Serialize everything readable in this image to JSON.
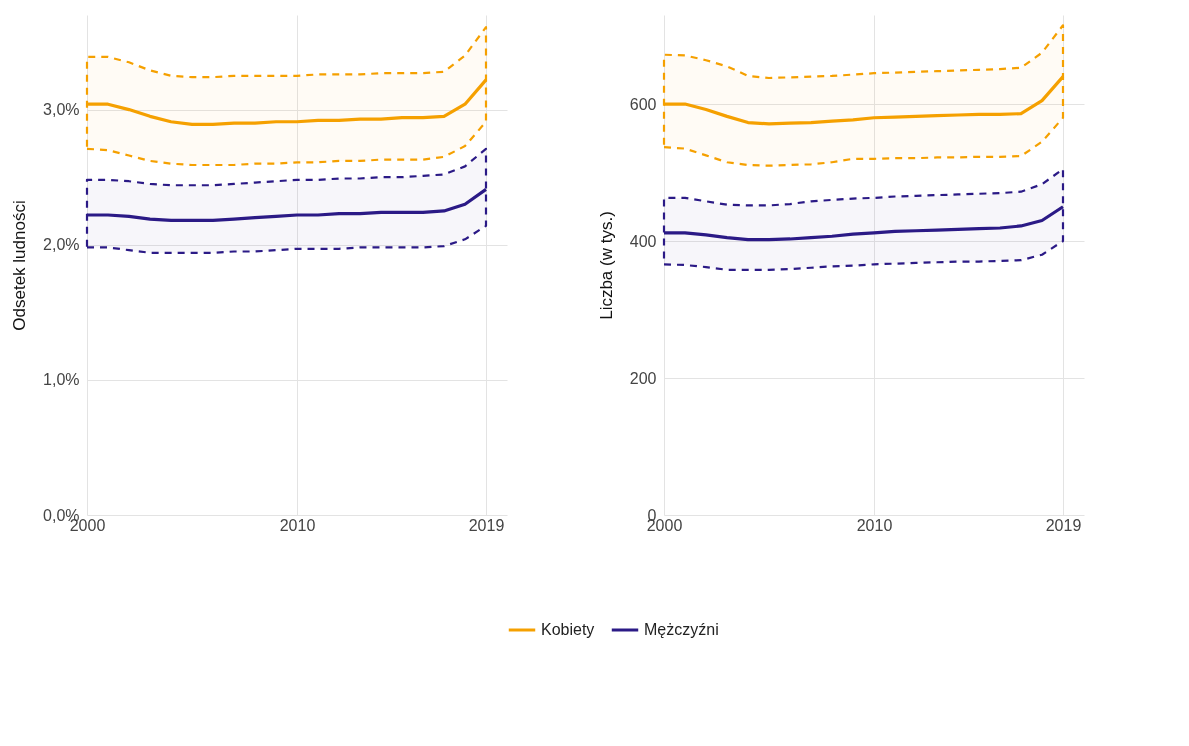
{
  "chart_data": [
    {
      "type": "line",
      "ylabel": "Odsetek ludności",
      "x": [
        2000,
        2001,
        2002,
        2003,
        2004,
        2005,
        2006,
        2007,
        2008,
        2009,
        2010,
        2011,
        2012,
        2013,
        2014,
        2015,
        2016,
        2017,
        2018,
        2019
      ],
      "xlim": [
        2000,
        2020
      ],
      "xticks": [
        2000,
        2010,
        2019
      ],
      "ylim": [
        0,
        3.7
      ],
      "yticks": [
        {
          "value": 0,
          "label": "0,0%"
        },
        {
          "value": 1,
          "label": "1,0%"
        },
        {
          "value": 2,
          "label": "2,0%"
        },
        {
          "value": 3,
          "label": "3,0%"
        }
      ],
      "grid": true,
      "legend": "bottom",
      "series": [
        {
          "name": "Kobiety",
          "color": "#f5a000",
          "values": [
            3.04,
            3.04,
            3.0,
            2.95,
            2.91,
            2.89,
            2.89,
            2.9,
            2.9,
            2.91,
            2.91,
            2.92,
            2.92,
            2.93,
            2.93,
            2.94,
            2.94,
            2.95,
            3.04,
            3.22
          ],
          "upper": [
            3.39,
            3.39,
            3.35,
            3.29,
            3.25,
            3.24,
            3.24,
            3.25,
            3.25,
            3.25,
            3.25,
            3.26,
            3.26,
            3.26,
            3.27,
            3.27,
            3.27,
            3.28,
            3.4,
            3.61
          ],
          "lower": [
            2.71,
            2.7,
            2.66,
            2.62,
            2.6,
            2.59,
            2.59,
            2.59,
            2.6,
            2.6,
            2.61,
            2.61,
            2.62,
            2.62,
            2.63,
            2.63,
            2.63,
            2.65,
            2.73,
            2.91
          ]
        },
        {
          "name": "Mężczyźni",
          "color": "#2b1a86",
          "values": [
            2.22,
            2.22,
            2.21,
            2.19,
            2.18,
            2.18,
            2.18,
            2.19,
            2.2,
            2.21,
            2.22,
            2.22,
            2.23,
            2.23,
            2.24,
            2.24,
            2.24,
            2.25,
            2.3,
            2.41
          ],
          "upper": [
            2.48,
            2.48,
            2.47,
            2.45,
            2.44,
            2.44,
            2.44,
            2.45,
            2.46,
            2.47,
            2.48,
            2.48,
            2.49,
            2.49,
            2.5,
            2.5,
            2.51,
            2.52,
            2.58,
            2.71
          ],
          "lower": [
            1.98,
            1.98,
            1.96,
            1.94,
            1.94,
            1.94,
            1.94,
            1.95,
            1.95,
            1.96,
            1.97,
            1.97,
            1.97,
            1.98,
            1.98,
            1.98,
            1.98,
            1.99,
            2.04,
            2.14
          ]
        }
      ]
    },
    {
      "type": "line",
      "ylabel": "Liczba (w tys.)",
      "x": [
        2000,
        2001,
        2002,
        2003,
        2004,
        2005,
        2006,
        2007,
        2008,
        2009,
        2010,
        2011,
        2012,
        2013,
        2014,
        2015,
        2016,
        2017,
        2018,
        2019
      ],
      "xlim": [
        2000,
        2020
      ],
      "xticks": [
        2000,
        2010,
        2019
      ],
      "ylim": [
        0,
        730
      ],
      "yticks": [
        0,
        200,
        400,
        600
      ],
      "grid": true,
      "legend": "bottom",
      "series": [
        {
          "name": "Kobiety",
          "color": "#f5a000",
          "values": [
            600,
            600,
            592,
            582,
            573,
            571,
            572,
            573,
            575,
            577,
            580,
            581,
            582,
            583,
            584,
            585,
            585,
            586,
            605,
            640
          ],
          "upper": [
            672,
            671,
            664,
            655,
            641,
            638,
            639,
            640,
            641,
            643,
            645,
            646,
            647,
            648,
            649,
            650,
            651,
            653,
            675,
            715
          ],
          "lower": [
            537,
            535,
            525,
            515,
            511,
            510,
            511,
            512,
            515,
            520,
            520,
            521,
            521,
            522,
            522,
            523,
            523,
            524,
            545,
            580
          ]
        },
        {
          "name": "Mężczyźni",
          "color": "#2b1a86",
          "values": [
            412,
            412,
            409,
            405,
            402,
            402,
            403,
            405,
            407,
            410,
            412,
            414,
            415,
            416,
            417,
            418,
            419,
            422,
            430,
            450
          ],
          "upper": [
            463,
            463,
            458,
            453,
            452,
            452,
            454,
            458,
            460,
            462,
            463,
            465,
            466,
            467,
            468,
            469,
            470,
            472,
            483,
            505
          ],
          "lower": [
            366,
            365,
            362,
            358,
            358,
            358,
            359,
            361,
            363,
            364,
            366,
            367,
            368,
            369,
            370,
            370,
            371,
            372,
            380,
            400
          ]
        }
      ]
    }
  ]
}
